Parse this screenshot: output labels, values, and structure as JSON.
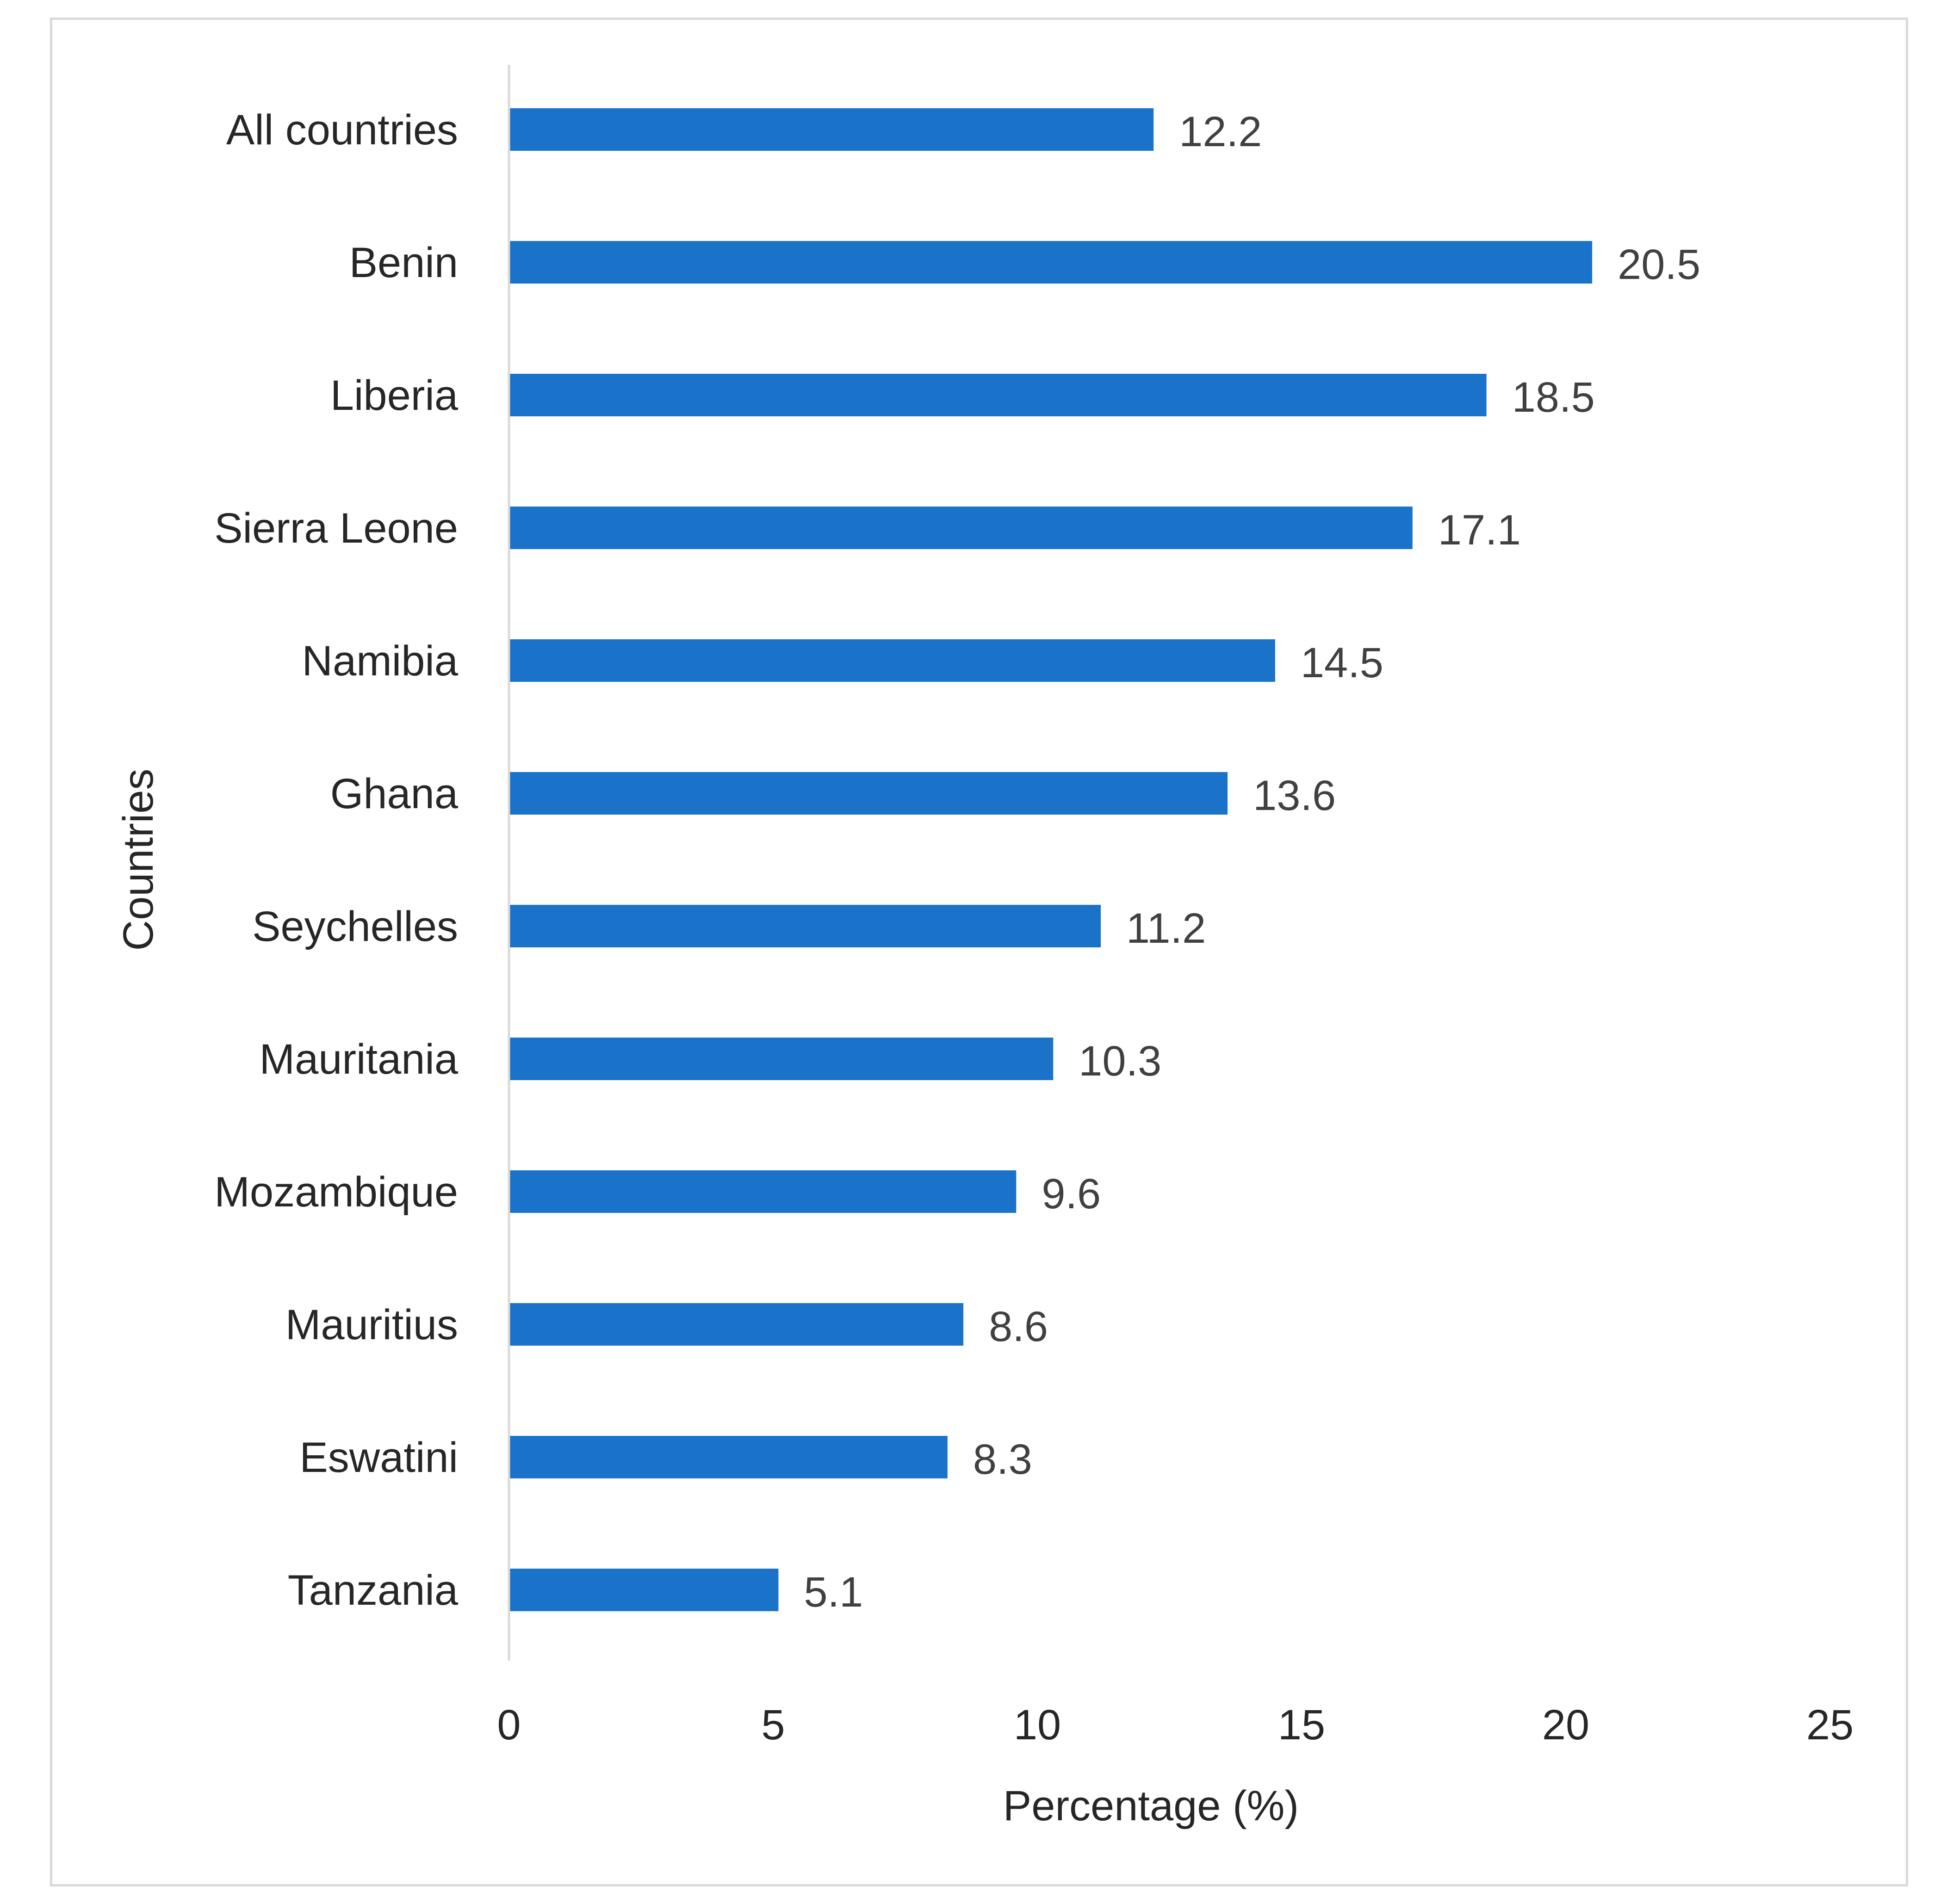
{
  "chart_data": {
    "type": "bar",
    "orientation": "horizontal",
    "categories": [
      "All countries",
      "Benin",
      "Liberia",
      "Sierra Leone",
      "Namibia",
      "Ghana",
      "Seychelles",
      "Mauritania",
      "Mozambique",
      "Mauritius",
      "Eswatini",
      "Tanzania"
    ],
    "values": [
      12.2,
      20.5,
      18.5,
      17.1,
      14.5,
      13.6,
      11.2,
      10.3,
      9.6,
      8.6,
      8.3,
      5.1
    ],
    "value_labels": [
      "12.2",
      "20.5",
      "18.5",
      "17.1",
      "14.5",
      "13.6",
      "11.2",
      "10.3",
      "9.6",
      "8.6",
      "8.3",
      "5.1"
    ],
    "xlabel": "Percentage (%)",
    "ylabel": "Countries",
    "xlim": [
      0,
      25
    ],
    "xticks": [
      "0",
      "5",
      "10",
      "15",
      "20",
      "25"
    ],
    "xtick_values": [
      0,
      5,
      10,
      15,
      20,
      25
    ],
    "grid": false,
    "legend": "none",
    "bar_color": "#1a73c8"
  }
}
